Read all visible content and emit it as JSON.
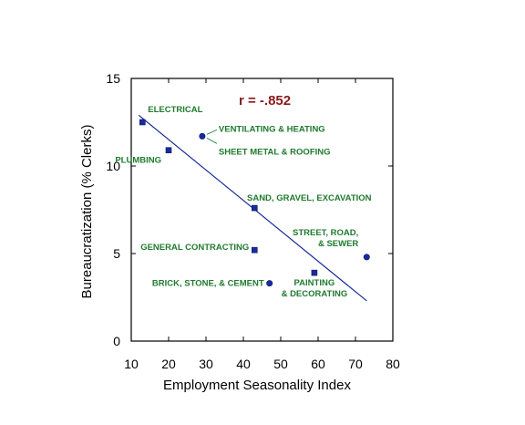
{
  "chart_data": {
    "type": "scatter",
    "title": "",
    "xlabel": "Employment Seasonality Index",
    "ylabel": "Bureaucratization (% Clerks)",
    "xlim": [
      10,
      80
    ],
    "ylim": [
      0,
      15
    ],
    "xticks": [
      10,
      20,
      30,
      40,
      50,
      60,
      70,
      80
    ],
    "yticks": [
      0,
      5,
      10,
      15
    ],
    "annotation": "r = -.852",
    "grid": false,
    "colors": {
      "points": "#1a2b9a",
      "line": "#1a2b9a",
      "labels": "#1f7a2e",
      "annotation": "#8b1a1a"
    },
    "points": [
      {
        "x": 13,
        "y": 12.5,
        "label": "ELECTRICAL",
        "shape": "square"
      },
      {
        "x": 20,
        "y": 10.9,
        "label": "PLUMBING",
        "shape": "square"
      },
      {
        "x": 29,
        "y": 11.7,
        "label": "VENTILATING & HEATING",
        "label2": "SHEET METAL & ROOFING",
        "shape": "circle"
      },
      {
        "x": 43,
        "y": 7.6,
        "label": "SAND, GRAVEL, EXCAVATION",
        "shape": "square"
      },
      {
        "x": 43,
        "y": 5.2,
        "label": "GENERAL CONTRACTING",
        "shape": "square"
      },
      {
        "x": 47,
        "y": 3.3,
        "label": "BRICK, STONE, & CEMENT",
        "shape": "circle"
      },
      {
        "x": 59,
        "y": 3.9,
        "label": "PAINTING",
        "label2": "& DECORATING",
        "shape": "square"
      },
      {
        "x": 73,
        "y": 4.8,
        "label": "STREET, ROAD,",
        "label2": "& SEWER",
        "shape": "circle"
      }
    ],
    "regression_line": {
      "x": [
        12,
        73
      ],
      "y": [
        12.9,
        2.3
      ]
    }
  }
}
